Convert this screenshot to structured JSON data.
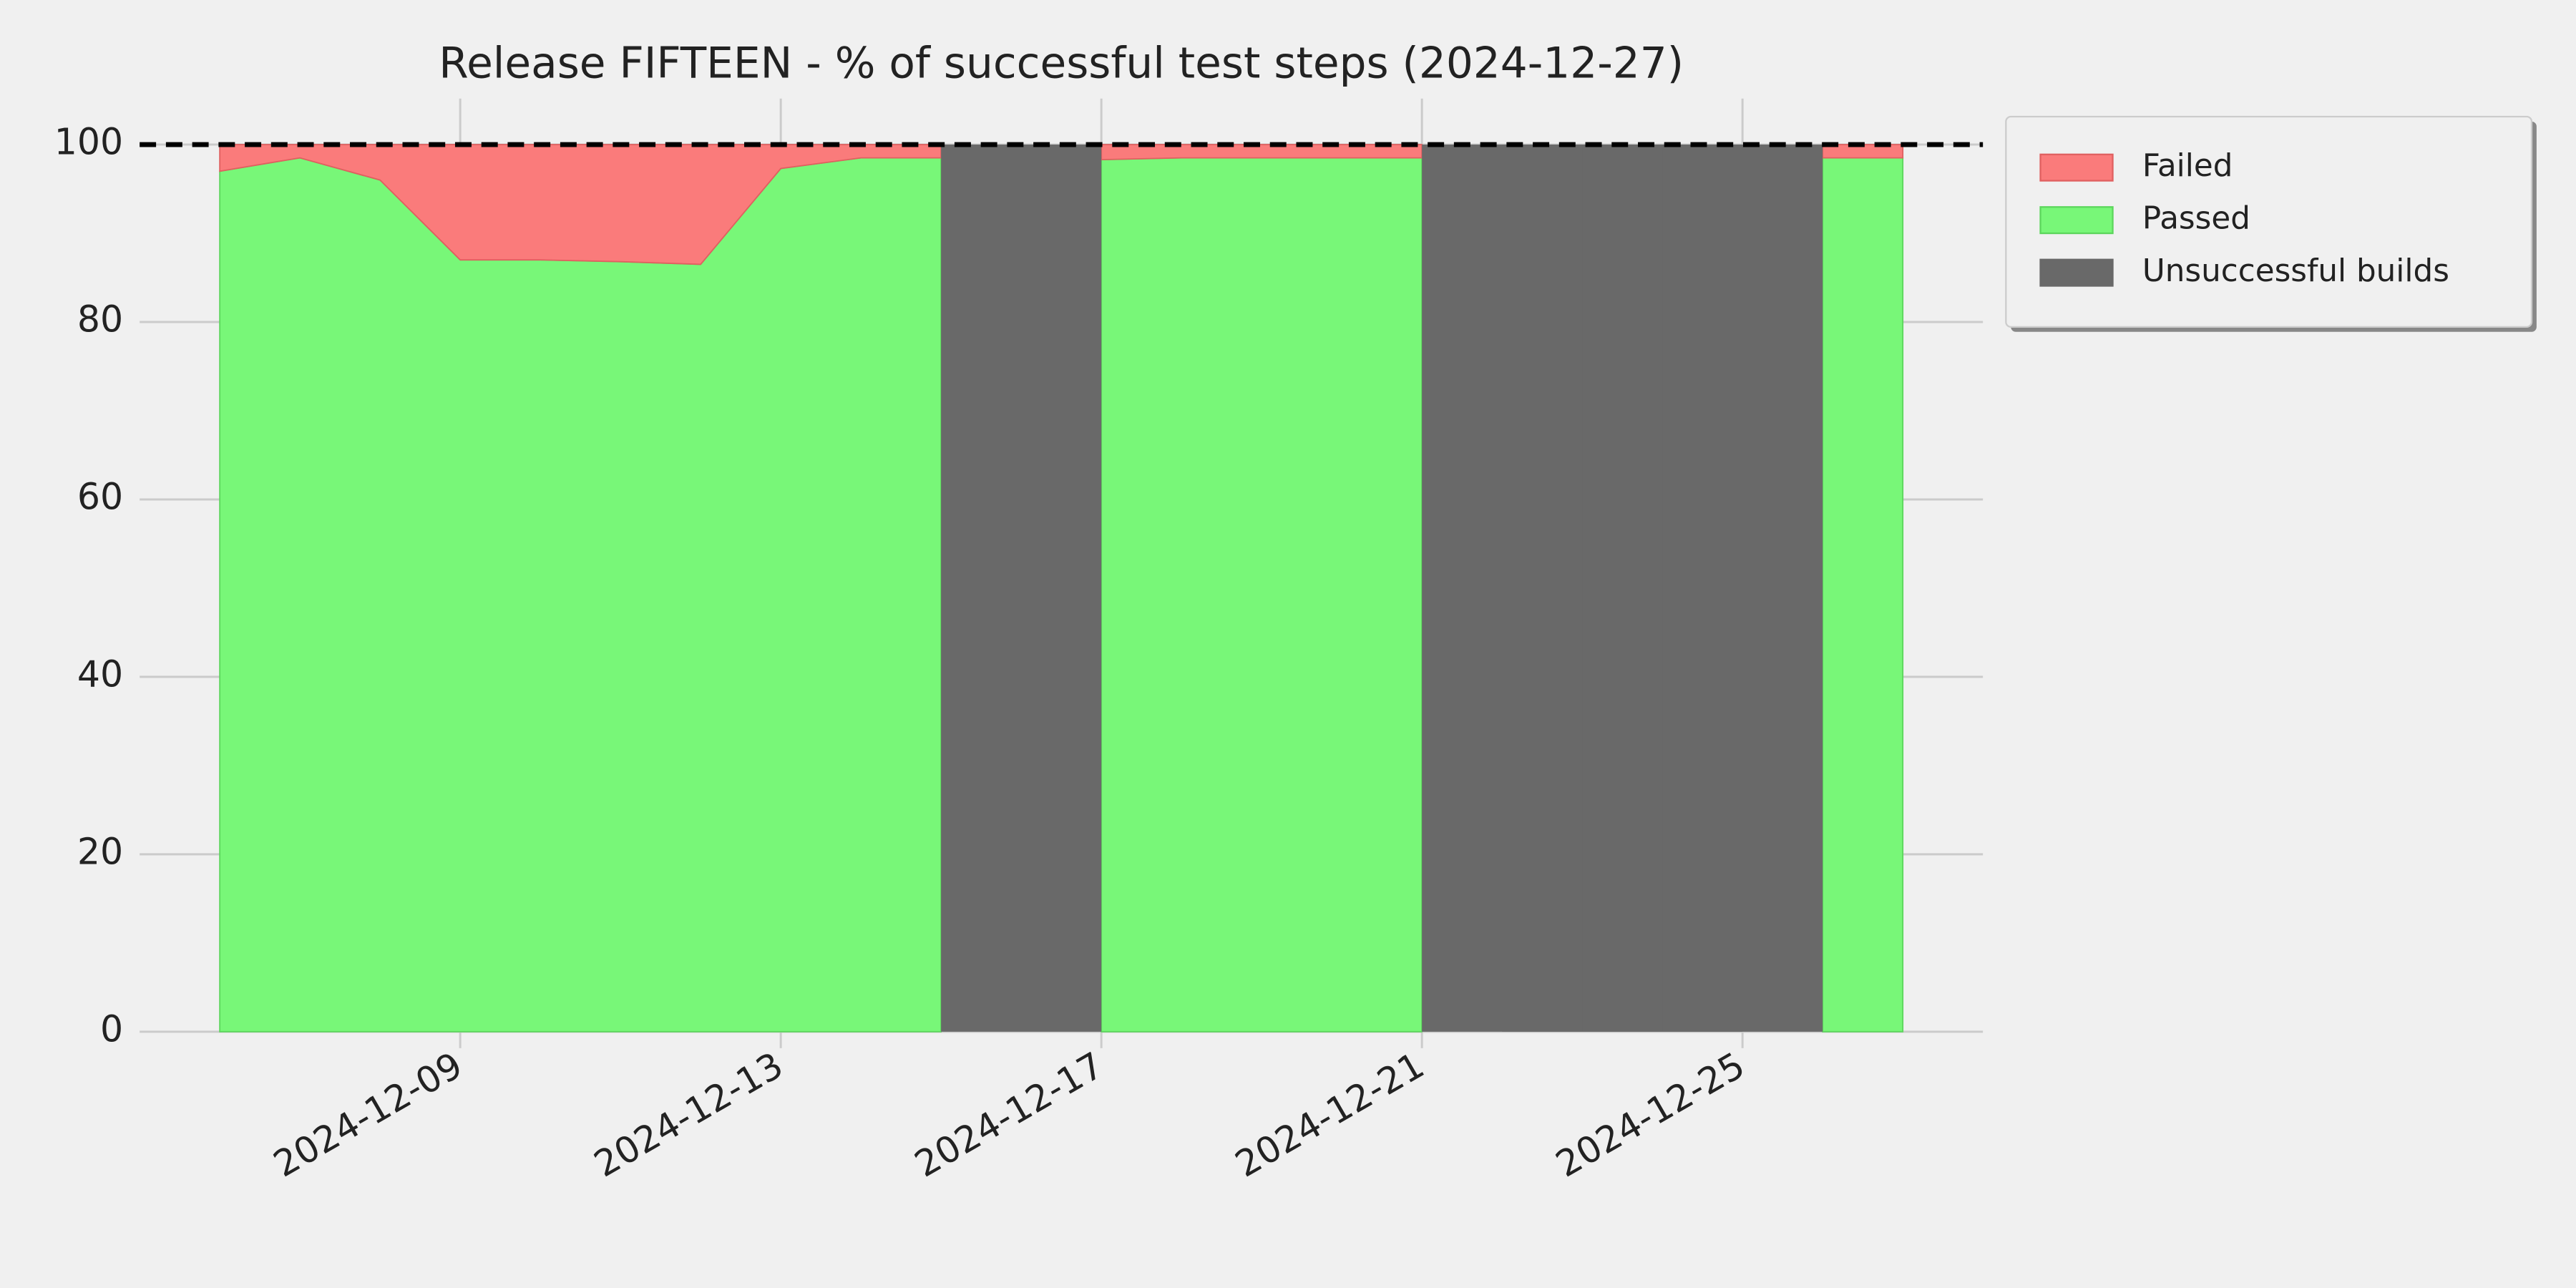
{
  "chart_data": {
    "type": "stacked-area",
    "title": "Release FIFTEEN - % of successful test steps (2024-12-27)",
    "x": [
      "2024-12-06",
      "2024-12-07",
      "2024-12-08",
      "2024-12-09",
      "2024-12-10",
      "2024-12-11",
      "2024-12-12",
      "2024-12-13",
      "2024-12-14",
      "2024-12-15",
      "2024-12-16",
      "2024-12-17",
      "2024-12-18",
      "2024-12-19",
      "2024-12-20",
      "2024-12-21",
      "2024-12-22",
      "2024-12-23",
      "2024-12-24",
      "2024-12-25",
      "2024-12-26",
      "2024-12-27"
    ],
    "series": [
      {
        "name": "Failed",
        "color": "#fa7b7b",
        "values": [
          3,
          1.5,
          4,
          13,
          13,
          13.2,
          13.5,
          2.7,
          1.5,
          1.5,
          null,
          1.7,
          1.5,
          1.5,
          1.5,
          1.5,
          null,
          null,
          null,
          null,
          1.5,
          1.5
        ]
      },
      {
        "name": "Passed",
        "color": "#78f778",
        "values": [
          97,
          98.5,
          96,
          87,
          87,
          86.8,
          86.5,
          97.3,
          98.5,
          98.5,
          null,
          98.3,
          98.5,
          98.5,
          98.5,
          98.5,
          null,
          null,
          null,
          null,
          98.5,
          98.5
        ]
      },
      {
        "name": "Unsuccessful builds",
        "color": "#696969",
        "values": [
          null,
          null,
          null,
          null,
          null,
          null,
          null,
          null,
          null,
          null,
          100,
          null,
          null,
          null,
          null,
          null,
          100,
          100,
          100,
          100,
          null,
          null
        ]
      }
    ],
    "xlim": [
      "2024-12-05",
      "2024-12-28"
    ],
    "xticks": [
      "2024-12-09",
      "2024-12-13",
      "2024-12-17",
      "2024-12-21",
      "2024-12-25"
    ],
    "ylim": [
      0,
      100
    ],
    "yticks": [
      0,
      20,
      40,
      60,
      80,
      100
    ],
    "reference_line": 100,
    "grid": true,
    "legend": "outside-upper-right"
  }
}
